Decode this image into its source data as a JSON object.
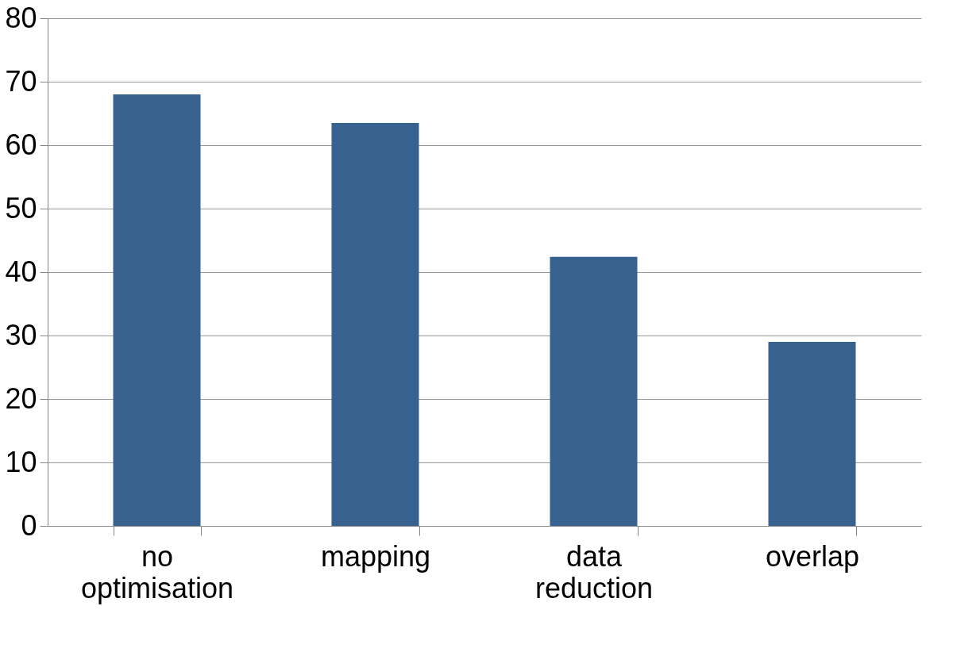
{
  "chart_data": {
    "type": "bar",
    "categories": [
      "no optimisation",
      "mapping",
      "data reduction",
      "overlap"
    ],
    "values": [
      68,
      63.5,
      42.4,
      29
    ],
    "color": "#37618f",
    "ylim": [
      0,
      80
    ],
    "yticks": [
      0,
      10,
      20,
      30,
      40,
      50,
      60,
      70,
      80
    ],
    "grid": "y"
  }
}
